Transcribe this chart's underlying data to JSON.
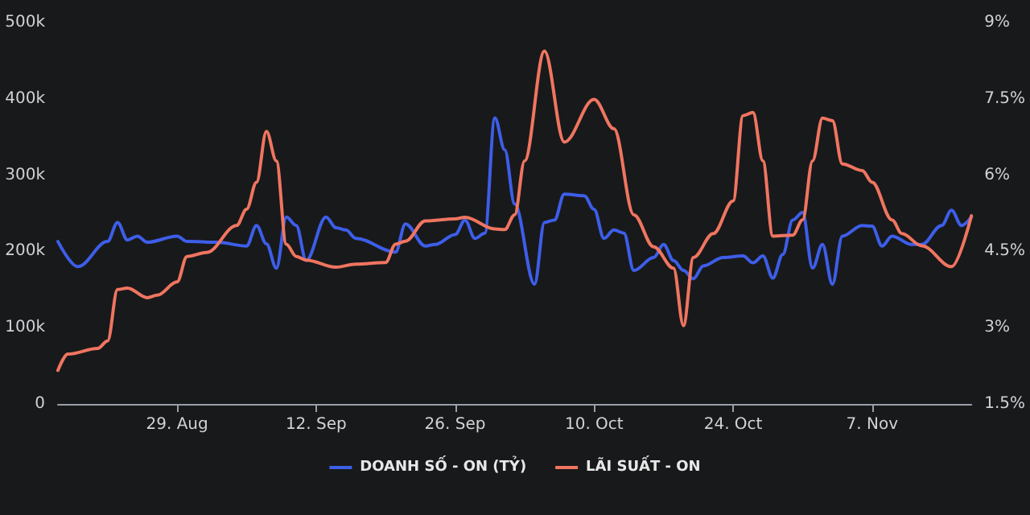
{
  "chart_data": {
    "type": "line",
    "xlim": [
      "--08-17",
      "--11-17"
    ],
    "xticks": [
      {
        "value": "--08-29",
        "label": "29. Aug"
      },
      {
        "value": "--09-12",
        "label": "12. Sep"
      },
      {
        "value": "--09-26",
        "label": "26. Sep"
      },
      {
        "value": "--10-10",
        "label": "10. Oct"
      },
      {
        "value": "--10-24",
        "label": "24. Oct"
      },
      {
        "value": "--11-07",
        "label": "7. Nov"
      }
    ],
    "ylim": [
      0,
      500000
    ],
    "yticks": [
      0,
      {
        "value": 100000,
        "label": "100k"
      },
      {
        "value": 200000,
        "label": "200k"
      },
      {
        "value": 300000,
        "label": "300k"
      },
      {
        "value": 400000,
        "label": "400k"
      },
      {
        "value": 500000,
        "label": "500k"
      }
    ],
    "y2lim": [
      1.5,
      9
    ],
    "y2ticks": [
      {
        "value": 1.5,
        "label": "1.5%"
      },
      {
        "value": 3,
        "label": "3%"
      },
      {
        "value": 4.5,
        "label": "4.5%"
      },
      {
        "value": 6,
        "label": "6%"
      },
      {
        "value": 7.5,
        "label": "7.5%"
      },
      {
        "value": 9,
        "label": "9%"
      }
    ],
    "grid": false,
    "legend": "bottom",
    "marker": "none",
    "series": [
      {
        "name": "DOANH SỐ - ON (TỶ)",
        "color": "#3d5ee8",
        "x": [
          "--08-17",
          "--08-19",
          "--08-22",
          "--08-23",
          "--08-24",
          "--08-25",
          "--08-26",
          "--08-29",
          "--08-30",
          "--09-02",
          "--09-05",
          "--09-06",
          "--09-07",
          "--09-08",
          "--09-09",
          "--09-10",
          "--09-11",
          "--09-13",
          "--09-14",
          "--09-15",
          "--09-16",
          "--09-20",
          "--09-21",
          "--09-23",
          "--09-24",
          "--09-26",
          "--09-27",
          "--09-28",
          "--09-29",
          "--09-30",
          "--10-01",
          "--10-02",
          "--10-04",
          "--10-05",
          "--10-06",
          "--10-07",
          "--10-09",
          "--10-10",
          "--10-11",
          "--10-12",
          "--10-13",
          "--10-14",
          "--10-16",
          "--10-17",
          "--10-18",
          "--10-19",
          "--10-20",
          "--10-21",
          "--10-23",
          "--10-25",
          "--10-26",
          "--10-27",
          "--10-28",
          "--10-29",
          "--10-30",
          "--10-31",
          "--11-01",
          "--11-02",
          "--11-03",
          "--11-04",
          "--11-06",
          "--11-07",
          "--11-08",
          "--11-09",
          "--11-11",
          "--11-12",
          "--11-14",
          "--11-15",
          "--11-16",
          "--11-17"
        ],
        "values": [
          213000,
          180000,
          213000,
          238000,
          215000,
          220000,
          212000,
          220000,
          213000,
          212000,
          207000,
          234000,
          210000,
          178000,
          245000,
          234000,
          188000,
          245000,
          231000,
          228000,
          217000,
          199000,
          236000,
          207000,
          209000,
          222000,
          241000,
          217000,
          224000,
          375000,
          333000,
          262000,
          157000,
          238000,
          241000,
          275000,
          273000,
          255000,
          217000,
          228000,
          224000,
          175000,
          192000,
          209000,
          188000,
          175000,
          164000,
          181000,
          192000,
          194000,
          185000,
          194000,
          165000,
          196000,
          241000,
          251000,
          178000,
          209000,
          157000,
          220000,
          234000,
          233000,
          207000,
          220000,
          209000,
          209000,
          234000,
          254000,
          234000,
          245000
        ]
      },
      {
        "name": "LÃI SUẤT - ON",
        "color": "#f07560",
        "axis": "y2",
        "x": [
          "--08-17",
          "--08-18",
          "--08-21",
          "--08-22",
          "--08-23",
          "--08-24",
          "--08-26",
          "--08-27",
          "--08-29",
          "--08-30",
          "--09-01",
          "--09-04",
          "--09-05",
          "--09-06",
          "--09-07",
          "--09-08",
          "--09-09",
          "--09-10",
          "--09-11",
          "--09-14",
          "--09-16",
          "--09-19",
          "--09-20",
          "--09-21",
          "--09-23",
          "--09-26",
          "--09-27",
          "--09-30",
          "--10-01",
          "--10-02",
          "--10-03",
          "--10-05",
          "--10-07",
          "--10-10",
          "--10-12",
          "--10-14",
          "--10-16",
          "--10-18",
          "--10-19",
          "--10-20",
          "--10-22",
          "--10-24",
          "--10-25",
          "--10-26",
          "--10-27",
          "--10-28",
          "--10-30",
          "--10-31",
          "--11-01",
          "--11-02",
          "--11-03",
          "--11-04",
          "--11-06",
          "--11-07",
          "--11-09",
          "--11-10",
          "--11-12",
          "--11-15",
          "--11-17"
        ],
        "values": [
          2.16,
          2.48,
          2.59,
          2.74,
          3.75,
          3.78,
          3.59,
          3.64,
          3.9,
          4.4,
          4.48,
          5.01,
          5.33,
          5.86,
          6.86,
          6.28,
          4.64,
          4.4,
          4.33,
          4.19,
          4.25,
          4.28,
          4.64,
          4.7,
          5.1,
          5.14,
          5.17,
          4.94,
          4.93,
          5.22,
          6.28,
          8.44,
          6.65,
          7.49,
          6.91,
          5.22,
          4.59,
          4.17,
          3.04,
          4.38,
          4.85,
          5.49,
          7.17,
          7.23,
          6.28,
          4.8,
          4.82,
          5.12,
          6.28,
          7.12,
          7.07,
          6.22,
          6.09,
          5.86,
          5.12,
          4.85,
          4.61,
          4.2,
          5.2
        ]
      }
    ]
  }
}
